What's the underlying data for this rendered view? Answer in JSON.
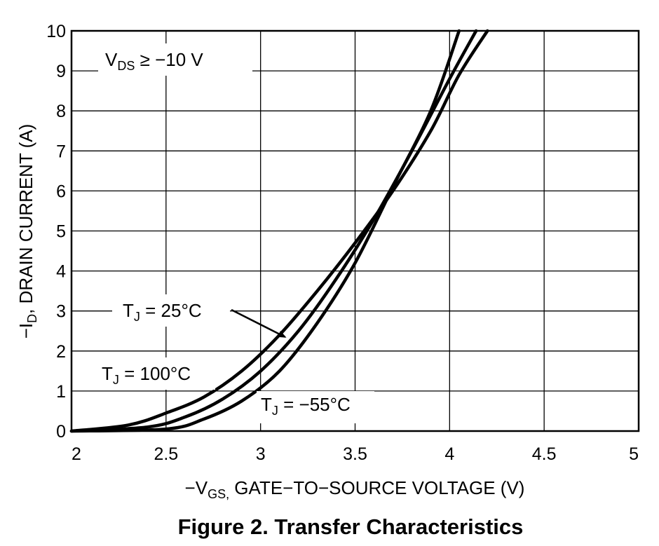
{
  "chart_data": {
    "type": "line",
    "title": "Figure 2. Transfer Characteristics",
    "xlabel": {
      "prefix": "−V",
      "sub": "GS,",
      "suffix": " GATE−TO−SOURCE VOLTAGE (V)"
    },
    "ylabel": {
      "prefix": "−I",
      "sub": "D",
      "suffix": ", DRAIN CURRENT (A)"
    },
    "xlim": [
      2,
      5
    ],
    "ylim": [
      0,
      10
    ],
    "x_ticks": [
      2,
      2.5,
      3,
      3.5,
      4,
      4.5,
      5
    ],
    "x_tick_labels": [
      "2",
      "2.5",
      "3",
      "3.5",
      "4",
      "4.5",
      "5"
    ],
    "y_ticks": [
      0,
      1,
      2,
      3,
      4,
      5,
      6,
      7,
      8,
      9,
      10
    ],
    "y_tick_labels": [
      "0",
      "1",
      "2",
      "3",
      "4",
      "5",
      "6",
      "7",
      "8",
      "9",
      "10"
    ],
    "grid": true,
    "series": [
      {
        "name": "T_J = 100°C",
        "points": [
          [
            2.0,
            0.0
          ],
          [
            2.3,
            0.15
          ],
          [
            2.5,
            0.45
          ],
          [
            2.7,
            0.85
          ],
          [
            2.9,
            1.5
          ],
          [
            3.1,
            2.4
          ],
          [
            3.3,
            3.5
          ],
          [
            3.5,
            4.7
          ],
          [
            3.7,
            6.0
          ],
          [
            3.9,
            7.5
          ],
          [
            4.05,
            8.9
          ],
          [
            4.2,
            10.0
          ]
        ]
      },
      {
        "name": "T_J = 25°C",
        "points": [
          [
            2.0,
            0.0
          ],
          [
            2.4,
            0.1
          ],
          [
            2.6,
            0.35
          ],
          [
            2.8,
            0.8
          ],
          [
            3.0,
            1.5
          ],
          [
            3.2,
            2.5
          ],
          [
            3.4,
            3.8
          ],
          [
            3.6,
            5.3
          ],
          [
            3.8,
            7.0
          ],
          [
            4.0,
            8.8
          ],
          [
            4.14,
            10.0
          ]
        ]
      },
      {
        "name": "T_J = −55°C",
        "points": [
          [
            2.0,
            0.0
          ],
          [
            2.5,
            0.05
          ],
          [
            2.7,
            0.3
          ],
          [
            2.9,
            0.75
          ],
          [
            3.1,
            1.5
          ],
          [
            3.3,
            2.7
          ],
          [
            3.5,
            4.2
          ],
          [
            3.7,
            6.1
          ],
          [
            3.9,
            8.0
          ],
          [
            4.05,
            10.0
          ]
        ]
      }
    ],
    "annotations": {
      "vds": {
        "main": "V",
        "sub": "DS",
        "rest": " ≥ −10 V"
      },
      "t25": {
        "main": "T",
        "sub": "J",
        "rest": " = 25°C"
      },
      "t100": {
        "main": "T",
        "sub": "J",
        "rest": " = 100°C"
      },
      "tm55": {
        "main": "T",
        "sub": "J",
        "rest": " = −55°C"
      }
    },
    "arrow_target": [
      3.13,
      2.35
    ]
  },
  "caption": "Figure 2. Transfer Characteristics"
}
